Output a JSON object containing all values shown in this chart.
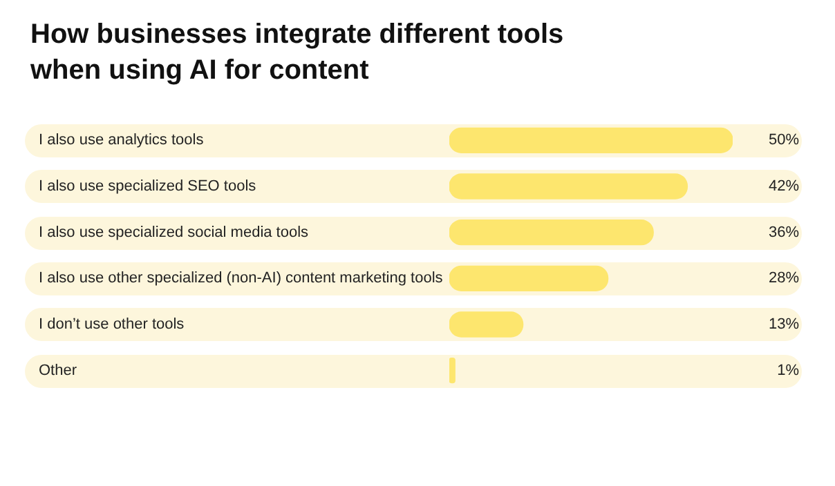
{
  "chart_data": {
    "type": "bar",
    "orientation": "horizontal",
    "title": "How businesses integrate different tools when using AI for content",
    "categories": [
      "I also use analytics tools",
      "I also use specialized SEO tools",
      "I also use specialized social media tools",
      "I also use other specialized (non-AI) content marketing tools",
      "I don’t use other tools",
      "Other"
    ],
    "values": [
      50,
      42,
      36,
      28,
      13,
      1
    ],
    "value_labels": [
      "50%",
      "42%",
      "36%",
      "28%",
      "13%",
      "1%"
    ],
    "color": "#fde66e",
    "xlim": [
      0,
      50
    ],
    "tick_labels": false,
    "grid": false,
    "legend": false
  }
}
